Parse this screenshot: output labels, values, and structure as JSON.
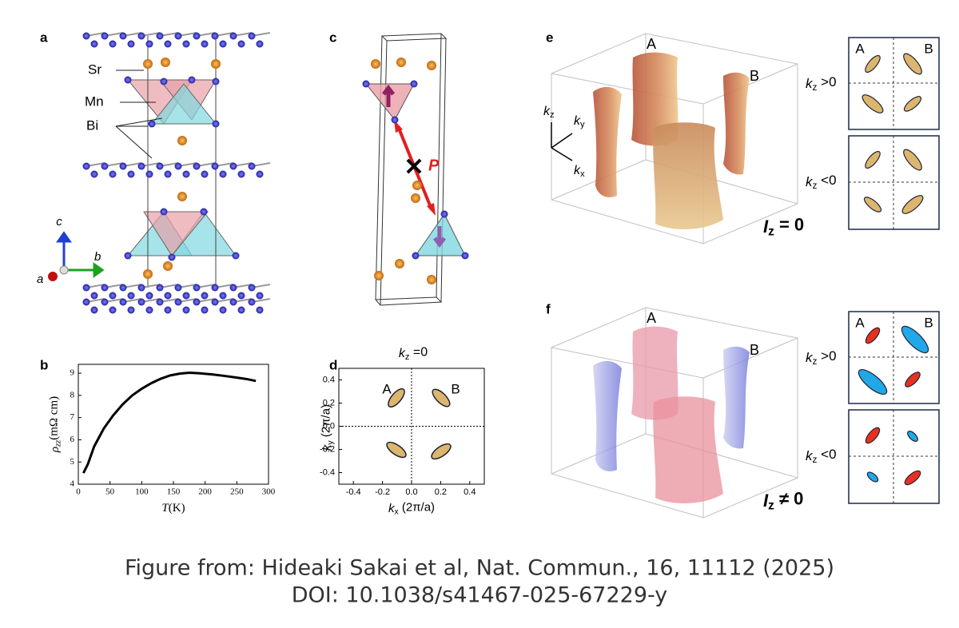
{
  "panel_a": {
    "label": "a",
    "atoms": [
      "Sr",
      "Mn",
      "Bi"
    ],
    "axes": [
      "c",
      "b",
      "a"
    ]
  },
  "panel_b": {
    "label": "b",
    "type": "line",
    "x_label": {
      "symbol": "T",
      "unit": "(K)"
    },
    "y_label": {
      "symbol": "ρ",
      "sub": "zz",
      "unit": "(mΩ cm)"
    },
    "xlim": [
      0,
      300
    ],
    "xticks": [
      0,
      50,
      100,
      150,
      200,
      250,
      300
    ],
    "ylim": [
      4,
      9.4
    ],
    "yticks": [
      4,
      5,
      6,
      7,
      8,
      9
    ],
    "x": [
      8,
      15,
      25,
      40,
      55,
      70,
      85,
      100,
      115,
      130,
      145,
      160,
      175,
      190,
      210,
      230,
      250,
      265,
      280
    ],
    "values": [
      4.5,
      4.9,
      5.7,
      6.5,
      7.1,
      7.6,
      8.0,
      8.3,
      8.55,
      8.75,
      8.9,
      8.98,
      9.02,
      9.0,
      8.95,
      8.88,
      8.8,
      8.74,
      8.65
    ],
    "color": "#000000"
  },
  "panel_c": {
    "label": "c",
    "vector": "P"
  },
  "panel_d": {
    "label": "d",
    "title": {
      "symbol": "k",
      "sub": "z",
      "rest": " =0"
    },
    "x_label": {
      "symbol": "k",
      "sub": "x",
      "unit": " (2π/a)"
    },
    "y_label": {
      "symbol": "k",
      "sub": "y",
      "unit": " (2π/a)"
    },
    "xlim": [
      -0.5,
      0.5
    ],
    "xticks": [
      -0.4,
      -0.2,
      {
        "value": 0,
        "label": "0.0"
      },
      0.2,
      0.4
    ],
    "ylim": [
      -0.5,
      0.5
    ],
    "yticks": [
      -0.4,
      -0.2,
      {
        "value": 0,
        "label": "0.0"
      },
      0.2,
      0.4
    ],
    "pockets": [
      "A",
      "B"
    ]
  },
  "panel_e": {
    "label": "e",
    "pockets": [
      "A",
      "B"
    ],
    "axes": [
      {
        "symbol": "k",
        "sub": "z"
      },
      {
        "symbol": "k",
        "sub": "y"
      },
      {
        "symbol": "k",
        "sub": "x"
      }
    ],
    "condition": {
      "symbol": "I",
      "sub": "z",
      "rest": " = 0"
    },
    "slices": [
      {
        "symbol": "k",
        "sub": "z",
        "rest": " >0"
      },
      {
        "symbol": "k",
        "sub": "z",
        "rest": " <0"
      }
    ],
    "slice_pockets": [
      "A",
      "B"
    ]
  },
  "panel_f": {
    "label": "f",
    "pockets": [
      "A",
      "B"
    ],
    "condition": {
      "symbol": "I",
      "sub": "z",
      "rest": " ≠ 0"
    },
    "slices": [
      {
        "symbol": "k",
        "sub": "z",
        "rest": " >0"
      },
      {
        "symbol": "k",
        "sub": "z",
        "rest": " <0"
      }
    ],
    "slice_pockets": [
      "A",
      "B"
    ]
  },
  "caption": [
    "Figure from: Hideaki Sakai et al, Nat. Commun., 16, 11112 (2025)",
    "DOI:  10.1038/s41467-025-67229-y"
  ]
}
